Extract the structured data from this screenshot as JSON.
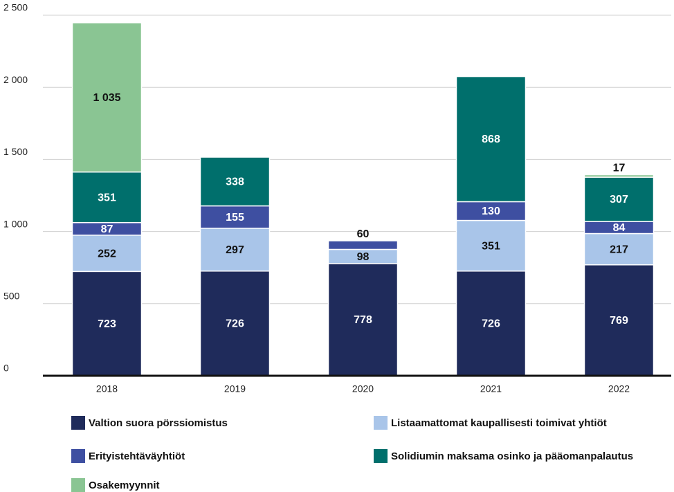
{
  "chart_data": {
    "type": "stacked_bar",
    "categories": [
      "2018",
      "2019",
      "2020",
      "2021",
      "2022"
    ],
    "series": [
      {
        "name": "Valtion suora pörssiomistus",
        "color": "#1f2b5b",
        "values": [
          723,
          726,
          778,
          726,
          769
        ]
      },
      {
        "name": "Listaamattomat kaupallisesti toimivat yhtiöt",
        "color": "#a9c5e9",
        "values": [
          252,
          297,
          98,
          351,
          217
        ]
      },
      {
        "name": "Erityistehtäväyhtiöt",
        "color": "#3e4fa1",
        "values": [
          87,
          155,
          60,
          130,
          84
        ]
      },
      {
        "name": "Solidiumin maksama osinko ja pääomanpalautus",
        "color": "#006f6c",
        "values": [
          351,
          338,
          null,
          868,
          307
        ]
      },
      {
        "name": "Osakemyynnit",
        "color": "#8ac593",
        "values": [
          1035,
          null,
          null,
          null,
          17
        ],
        "value_labels": [
          "1 035",
          null,
          null,
          null,
          "17"
        ]
      }
    ],
    "ylim": [
      0,
      2500
    ],
    "yticks": [
      0,
      500,
      {
        "value": 1000,
        "label": "1 000"
      },
      {
        "value": 1500,
        "label": "1 500"
      },
      {
        "value": 2000,
        "label": "2 000"
      },
      {
        "value": 2500,
        "label": "2 500"
      }
    ],
    "grid": true
  }
}
